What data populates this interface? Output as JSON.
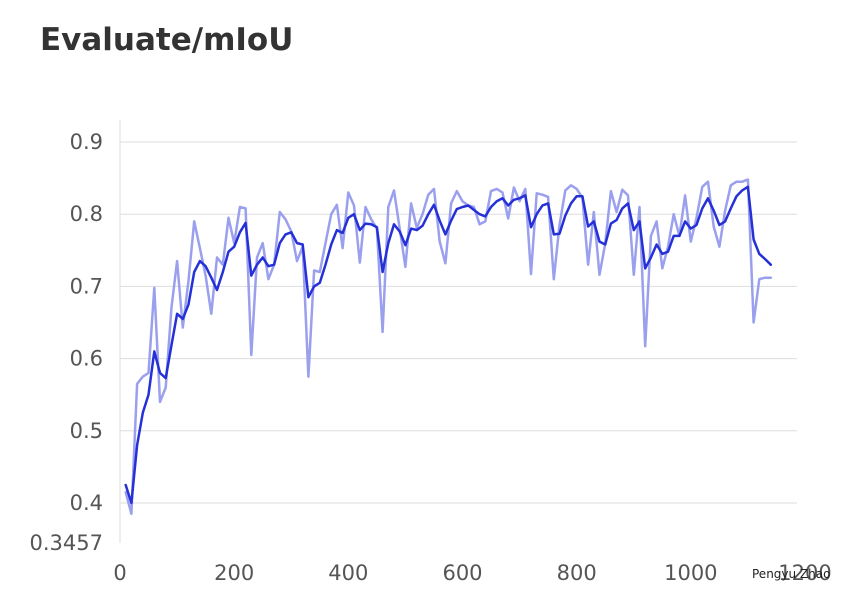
{
  "title": "Evaluate/mIoU",
  "watermark": "Pengyu Zhao",
  "colors": {
    "raw": "#9aa0ee",
    "smoothed": "#2531d6",
    "grid": "#dddddd",
    "text": "#555555"
  },
  "chart_data": {
    "type": "line",
    "title": "Evaluate/mIoU",
    "xlabel": "",
    "ylabel": "",
    "xlim": [
      0,
      1200
    ],
    "ylim": [
      0.3457,
      0.9
    ],
    "x_ticks": [
      "0",
      "200",
      "400",
      "600",
      "800",
      "1000",
      "1200"
    ],
    "y_ticks": [
      "0.3457",
      "0.4",
      "0.5",
      "0.6",
      "0.7",
      "0.8",
      "0.9"
    ],
    "grid": true,
    "series": [
      {
        "style": "raw",
        "x": [
          10,
          20,
          30,
          40,
          50,
          60,
          70,
          80,
          90,
          100,
          110,
          120,
          130,
          140,
          150,
          160,
          170,
          180,
          190,
          200,
          210,
          220,
          230,
          240,
          250,
          260,
          270,
          280,
          290,
          300,
          310,
          320,
          330,
          340,
          350,
          360,
          370,
          380,
          390,
          400,
          410,
          420,
          430,
          440,
          450,
          460,
          470,
          480,
          490,
          500,
          510,
          520,
          530,
          540,
          550,
          560,
          570,
          580,
          590,
          600,
          610,
          620,
          630,
          640,
          650,
          660,
          670,
          680,
          690,
          700,
          710,
          720,
          730,
          740,
          750,
          760,
          770,
          780,
          790,
          800,
          810,
          820,
          830,
          840,
          850,
          860,
          870,
          880,
          890,
          900,
          910,
          920,
          930,
          940,
          950,
          960,
          970,
          980,
          990,
          1000,
          1010,
          1020,
          1030,
          1040,
          1050,
          1060,
          1070,
          1080,
          1090,
          1100,
          1110,
          1120,
          1130,
          1140
        ],
        "y": [
          0.415,
          0.385,
          0.565,
          0.575,
          0.58,
          0.698,
          0.54,
          0.56,
          0.67,
          0.735,
          0.643,
          0.708,
          0.79,
          0.753,
          0.715,
          0.662,
          0.74,
          0.73,
          0.795,
          0.76,
          0.81,
          0.808,
          0.605,
          0.74,
          0.76,
          0.71,
          0.73,
          0.803,
          0.793,
          0.776,
          0.735,
          0.755,
          0.575,
          0.722,
          0.72,
          0.76,
          0.8,
          0.813,
          0.753,
          0.83,
          0.812,
          0.733,
          0.81,
          0.793,
          0.78,
          0.637,
          0.81,
          0.833,
          0.78,
          0.727,
          0.815,
          0.781,
          0.8,
          0.827,
          0.835,
          0.762,
          0.732,
          0.815,
          0.832,
          0.818,
          0.812,
          0.81,
          0.786,
          0.79,
          0.832,
          0.835,
          0.83,
          0.794,
          0.837,
          0.818,
          0.835,
          0.717,
          0.829,
          0.827,
          0.824,
          0.71,
          0.785,
          0.833,
          0.84,
          0.835,
          0.823,
          0.73,
          0.803,
          0.716,
          0.759,
          0.832,
          0.803,
          0.834,
          0.826,
          0.716,
          0.81,
          0.617,
          0.77,
          0.79,
          0.725,
          0.755,
          0.8,
          0.77,
          0.826,
          0.762,
          0.795,
          0.838,
          0.845,
          0.783,
          0.755,
          0.805,
          0.84,
          0.845,
          0.845,
          0.848,
          0.65,
          0.71,
          0.712,
          0.712
        ]
      },
      {
        "style": "smoothed",
        "x": [
          10,
          20,
          30,
          40,
          50,
          60,
          70,
          80,
          90,
          100,
          110,
          120,
          130,
          140,
          150,
          160,
          170,
          180,
          190,
          200,
          210,
          220,
          230,
          240,
          250,
          260,
          270,
          280,
          290,
          300,
          310,
          320,
          330,
          340,
          350,
          360,
          370,
          380,
          390,
          400,
          410,
          420,
          430,
          440,
          450,
          460,
          470,
          480,
          490,
          500,
          510,
          520,
          530,
          540,
          550,
          560,
          570,
          580,
          590,
          600,
          610,
          620,
          630,
          640,
          650,
          660,
          670,
          680,
          690,
          700,
          710,
          720,
          730,
          740,
          750,
          760,
          770,
          780,
          790,
          800,
          810,
          820,
          830,
          840,
          850,
          860,
          870,
          880,
          890,
          900,
          910,
          920,
          930,
          940,
          950,
          960,
          970,
          980,
          990,
          1000,
          1010,
          1020,
          1030,
          1040,
          1050,
          1060,
          1070,
          1080,
          1090,
          1100,
          1110,
          1120,
          1130,
          1140
        ],
        "y": [
          0.425,
          0.4,
          0.48,
          0.525,
          0.55,
          0.61,
          0.58,
          0.573,
          0.618,
          0.662,
          0.655,
          0.675,
          0.72,
          0.735,
          0.728,
          0.712,
          0.695,
          0.72,
          0.748,
          0.755,
          0.775,
          0.788,
          0.715,
          0.73,
          0.74,
          0.728,
          0.73,
          0.76,
          0.772,
          0.775,
          0.76,
          0.758,
          0.685,
          0.7,
          0.705,
          0.73,
          0.758,
          0.778,
          0.774,
          0.795,
          0.8,
          0.778,
          0.787,
          0.786,
          0.782,
          0.72,
          0.76,
          0.786,
          0.776,
          0.757,
          0.78,
          0.778,
          0.784,
          0.8,
          0.813,
          0.791,
          0.772,
          0.791,
          0.807,
          0.81,
          0.812,
          0.806,
          0.8,
          0.797,
          0.81,
          0.818,
          0.822,
          0.812,
          0.82,
          0.822,
          0.826,
          0.782,
          0.8,
          0.812,
          0.815,
          0.772,
          0.773,
          0.798,
          0.815,
          0.825,
          0.825,
          0.783,
          0.79,
          0.762,
          0.758,
          0.787,
          0.792,
          0.808,
          0.815,
          0.778,
          0.79,
          0.725,
          0.74,
          0.758,
          0.745,
          0.748,
          0.77,
          0.77,
          0.79,
          0.78,
          0.785,
          0.808,
          0.822,
          0.805,
          0.785,
          0.79,
          0.808,
          0.825,
          0.833,
          0.838,
          0.765,
          0.745,
          0.738,
          0.73
        ]
      }
    ]
  }
}
